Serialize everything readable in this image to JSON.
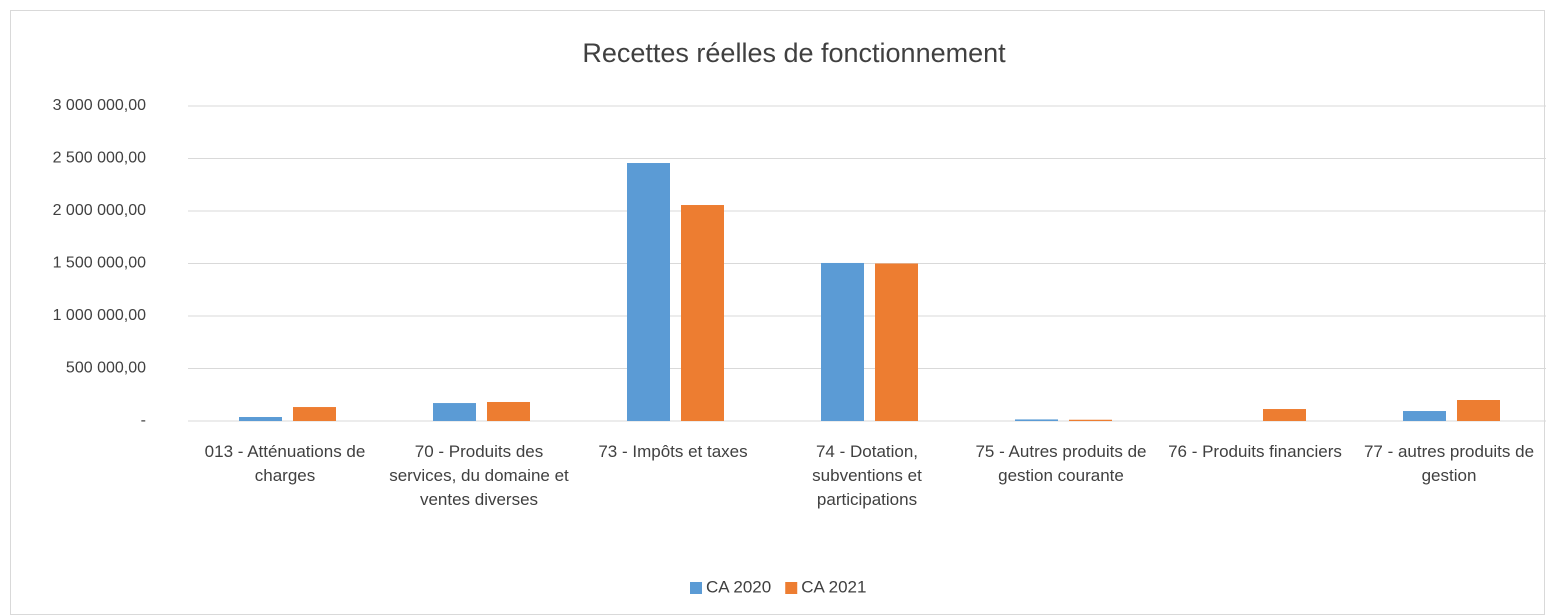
{
  "chart_data": {
    "type": "bar",
    "title": "Recettes réelles de fonctionnement",
    "categories": [
      "013 - Atténuations de charges",
      "70 - Produits des services, du domaine et ventes diverses",
      "73 - Impôts et taxes",
      "74 - Dotation, subventions et participations",
      "75 - Autres produits de gestion courante",
      "76 - Produits financiers",
      "77 - autres produits de gestion"
    ],
    "series": [
      {
        "name": "CA 2020",
        "color": "#5b9bd5",
        "values": [
          38000,
          171000,
          2457000,
          1505000,
          15000,
          0,
          95000
        ]
      },
      {
        "name": "CA 2021",
        "color": "#ed7d31",
        "values": [
          133000,
          181000,
          2057000,
          1500000,
          12000,
          114000,
          200000
        ]
      }
    ],
    "ylim": [
      0,
      3000000
    ],
    "yticks": [
      {
        "value": 0,
        "label": "-"
      },
      {
        "value": 500000,
        "label": "500 000,00"
      },
      {
        "value": 1000000,
        "label": "1 000 000,00"
      },
      {
        "value": 1500000,
        "label": "1 500 000,00"
      },
      {
        "value": 2000000,
        "label": "2 000 000,00"
      },
      {
        "value": 2500000,
        "label": "2 500 000,00"
      },
      {
        "value": 3000000,
        "label": "3 000 000,00"
      }
    ],
    "grid": true,
    "legend": "bottom"
  }
}
